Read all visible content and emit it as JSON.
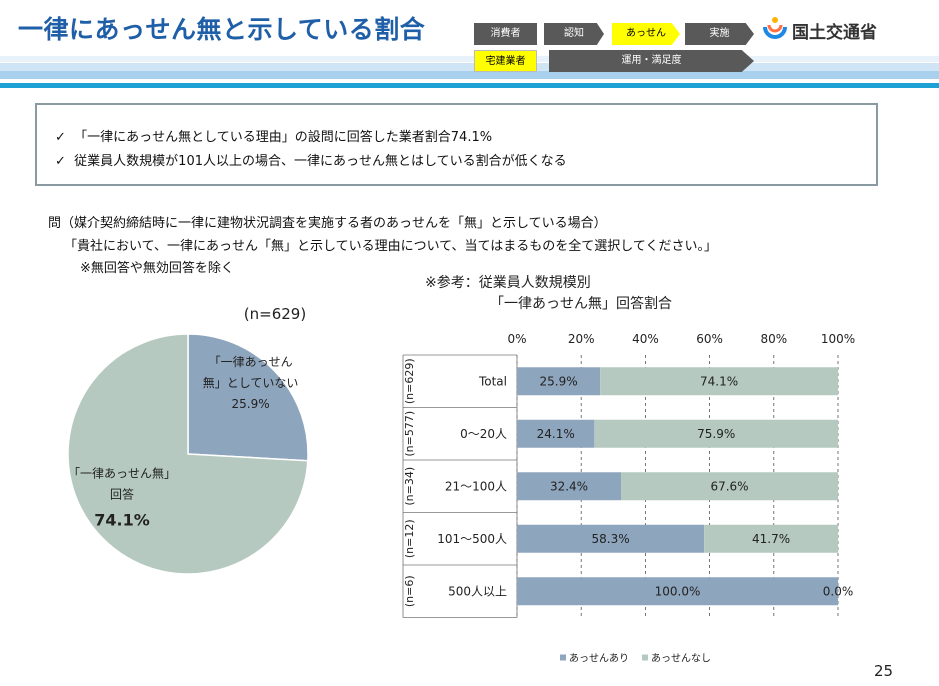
{
  "header": {
    "title": "一律にあっせん無と示している割合",
    "badges_row1": [
      "消費者",
      "認知",
      "あっせん",
      "実施"
    ],
    "badges_row2": [
      "宅建業者",
      "運用・満足度"
    ],
    "ministry": "国土交通省",
    "colors": {
      "title": "#1f5fa8",
      "badge_dark": "#595959",
      "badge_active": "#ffff00",
      "accent_bar": "#1ea0d4"
    }
  },
  "summary": {
    "check_mark": "✓",
    "lines": [
      "「一律にあっせん無としている理由」の設問に回答した業者割合74.1%",
      "従業員人数規模が101人以上の場合、一律にあっせん無とはしている割合が低くなる"
    ]
  },
  "question": {
    "line1": "問（媒介契約締結時に一律に建物状況調査を実施する者のあっせんを「無」と示している場合）",
    "line2": "「貴社において、一律にあっせん「無」と示している理由について、当てはまるものを全て選択してください。」",
    "line3": "※無回答や無効回答を除く"
  },
  "page_number": "25",
  "chart_data": [
    {
      "type": "pie",
      "title": "(n=629)",
      "slices": [
        {
          "label_lines": [
            "「一律あっせん",
            "無」としていない"
          ],
          "value": 25.9,
          "value_label": "25.9%",
          "color": "#8ea5be"
        },
        {
          "label_lines": [
            "「一律あっせん無」",
            "回答"
          ],
          "value": 74.1,
          "value_label": "74.1%",
          "color": "#b5c9c0"
        }
      ]
    },
    {
      "type": "bar",
      "orientation": "horizontal",
      "stacked": true,
      "title_lines": [
        "※参考：従業員人数規模別",
        "「一律あっせん無」回答割合"
      ],
      "xlim": [
        0,
        100
      ],
      "x_ticks": [
        "0%",
        "20%",
        "40%",
        "60%",
        "80%",
        "100%"
      ],
      "categories": [
        "Total",
        "0～20人",
        "21～100人",
        "101～500人",
        "500人以上"
      ],
      "group_labels": [
        "(n=629)",
        "(n=577)",
        "(n=34)",
        "(n=12)",
        "(n=6)"
      ],
      "series": [
        {
          "name": "あっせんあり",
          "color": "#8ea5be",
          "values": [
            25.9,
            24.1,
            32.4,
            58.3,
            100.0
          ],
          "labels": [
            "25.9%",
            "24.1%",
            "32.4%",
            "58.3%",
            "100.0%"
          ]
        },
        {
          "name": "あっせんなし",
          "color": "#b5c9c0",
          "values": [
            74.1,
            75.9,
            67.6,
            41.7,
            0.0
          ],
          "labels": [
            "74.1%",
            "75.9%",
            "67.6%",
            "41.7%",
            "0.0%"
          ]
        }
      ],
      "legend_position": "bottom",
      "grid": true
    }
  ]
}
